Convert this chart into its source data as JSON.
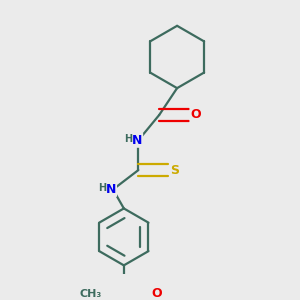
{
  "background_color": "#ebebeb",
  "atom_colors": {
    "C": "#3d6b5e",
    "N": "#0000ee",
    "O": "#ee0000",
    "S": "#ccaa00",
    "H": "#3d6b5e"
  },
  "bond_color": "#3d6b5e",
  "bond_width": 1.6,
  "font_size_atoms": 9,
  "font_size_H": 8,
  "xlim": [
    0.0,
    1.0
  ],
  "ylim": [
    0.0,
    1.0
  ]
}
